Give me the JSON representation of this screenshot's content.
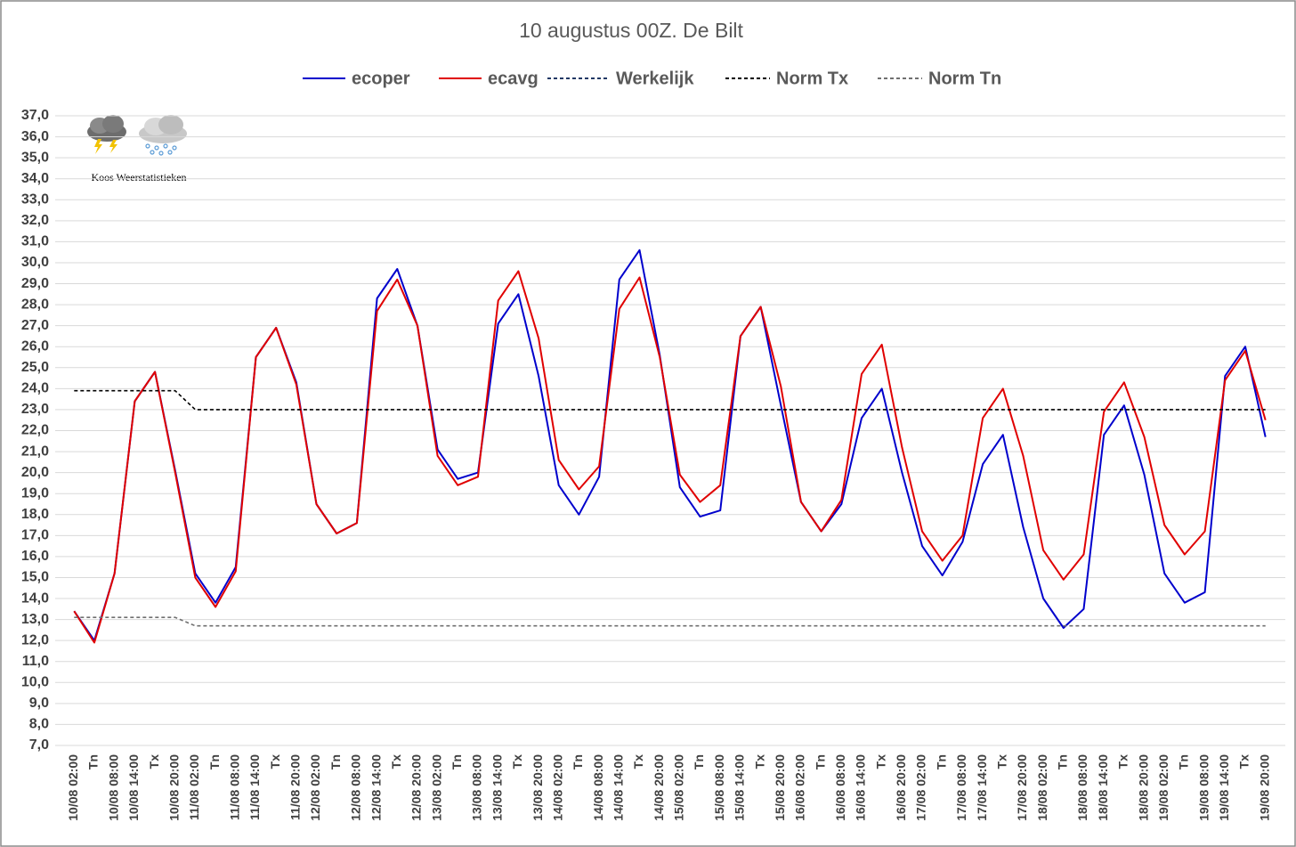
{
  "chart_data": {
    "type": "line",
    "title": "10 augustus 00Z. De Bilt",
    "logo_text": "Koos Weerstatistieken",
    "categories": [
      "10/08 02:00",
      "Tn",
      "10/08 08:00",
      "10/08 14:00",
      "Tx",
      "10/08 20:00",
      "11/08 02:00",
      "Tn",
      "11/08 08:00",
      "11/08 14:00",
      "Tx",
      "11/08 20:00",
      "12/08 02:00",
      "Tn",
      "12/08 08:00",
      "12/08 14:00",
      "Tx",
      "12/08 20:00",
      "13/08 02:00",
      "Tn",
      "13/08 08:00",
      "13/08 14:00",
      "Tx",
      "13/08 20:00",
      "14/08 02:00",
      "Tn",
      "14/08 08:00",
      "14/08 14:00",
      "Tx",
      "14/08 20:00",
      "15/08 02:00",
      "Tn",
      "15/08 08:00",
      "15/08 14:00",
      "Tx",
      "15/08 20:00",
      "16/08 02:00",
      "Tn",
      "16/08 08:00",
      "16/08 14:00",
      "Tx",
      "16/08 20:00",
      "17/08 02:00",
      "Tn",
      "17/08 08:00",
      "17/08 14:00",
      "Tx",
      "17/08 20:00",
      "18/08 02:00",
      "Tn",
      "18/08 08:00",
      "18/08 14:00",
      "Tx",
      "18/08 20:00",
      "19/08 02:00",
      "Tn",
      "19/08 08:00",
      "19/08 14:00",
      "Tx",
      "19/08 20:00"
    ],
    "series": [
      {
        "name": "ecoper",
        "color": "#0000cc",
        "dashed": false,
        "values": [
          13.4,
          12.0,
          15.2,
          23.4,
          24.8,
          20.1,
          15.2,
          13.8,
          15.5,
          25.5,
          26.9,
          24.3,
          18.5,
          17.1,
          17.6,
          28.3,
          29.7,
          27.0,
          21.1,
          19.7,
          20.0,
          27.1,
          28.5,
          24.6,
          19.4,
          18.0,
          19.8,
          29.2,
          30.6,
          25.6,
          19.3,
          17.9,
          18.2,
          26.5,
          27.9,
          23.2,
          18.6,
          17.2,
          18.5,
          22.6,
          24.0,
          20.0,
          16.5,
          15.1,
          16.7,
          20.4,
          21.8,
          17.4,
          14.0,
          12.6,
          13.5,
          21.8,
          23.2,
          19.9,
          15.2,
          13.8,
          14.3,
          24.6,
          26.0,
          21.7
        ]
      },
      {
        "name": "ecavg",
        "color": "#e00000",
        "dashed": false,
        "values": [
          13.4,
          11.9,
          15.2,
          23.4,
          24.8,
          20.0,
          15.0,
          13.6,
          15.3,
          25.5,
          26.9,
          24.2,
          18.5,
          17.1,
          17.6,
          27.7,
          29.2,
          27.0,
          20.8,
          19.4,
          19.8,
          28.2,
          29.6,
          26.4,
          20.6,
          19.2,
          20.3,
          27.8,
          29.3,
          25.5,
          19.9,
          18.6,
          19.4,
          26.5,
          27.9,
          24.1,
          18.6,
          17.2,
          18.7,
          24.7,
          26.1,
          21.2,
          17.2,
          15.8,
          17.0,
          22.6,
          24.0,
          20.8,
          16.3,
          14.9,
          16.1,
          22.9,
          24.3,
          21.7,
          17.5,
          16.1,
          17.2,
          24.4,
          25.8,
          22.5
        ]
      },
      {
        "name": "Werkelijk",
        "color": "#203864",
        "dashed": true,
        "values": [
          null,
          null,
          null,
          null,
          null,
          null,
          null,
          null,
          null,
          null,
          null,
          null,
          null,
          null,
          null,
          null,
          null,
          null,
          null,
          null,
          null,
          null,
          null,
          null,
          null,
          null,
          null,
          null,
          null,
          null,
          null,
          null,
          null,
          null,
          null,
          null,
          null,
          null,
          null,
          null,
          null,
          null,
          null,
          null,
          null,
          null,
          null,
          null,
          null,
          null,
          null,
          null,
          null,
          null,
          null,
          null,
          null,
          null,
          null,
          null
        ]
      },
      {
        "name": "Norm Tx",
        "color": "#000000",
        "dashed": true,
        "values": [
          23.9,
          23.9,
          23.9,
          23.9,
          23.9,
          23.9,
          23.0,
          23.0,
          23.0,
          23.0,
          23.0,
          23.0,
          23.0,
          23.0,
          23.0,
          23.0,
          23.0,
          23.0,
          23.0,
          23.0,
          23.0,
          23.0,
          23.0,
          23.0,
          23.0,
          23.0,
          23.0,
          23.0,
          23.0,
          23.0,
          23.0,
          23.0,
          23.0,
          23.0,
          23.0,
          23.0,
          23.0,
          23.0,
          23.0,
          23.0,
          23.0,
          23.0,
          23.0,
          23.0,
          23.0,
          23.0,
          23.0,
          23.0,
          23.0,
          23.0,
          23.0,
          23.0,
          23.0,
          23.0,
          23.0,
          23.0,
          23.0,
          23.0,
          23.0,
          23.0
        ]
      },
      {
        "name": "Norm Tn",
        "color": "#707070",
        "dashed": true,
        "values": [
          13.1,
          13.1,
          13.1,
          13.1,
          13.1,
          13.1,
          12.7,
          12.7,
          12.7,
          12.7,
          12.7,
          12.7,
          12.7,
          12.7,
          12.7,
          12.7,
          12.7,
          12.7,
          12.7,
          12.7,
          12.7,
          12.7,
          12.7,
          12.7,
          12.7,
          12.7,
          12.7,
          12.7,
          12.7,
          12.7,
          12.7,
          12.7,
          12.7,
          12.7,
          12.7,
          12.7,
          12.7,
          12.7,
          12.7,
          12.7,
          12.7,
          12.7,
          12.7,
          12.7,
          12.7,
          12.7,
          12.7,
          12.7,
          12.7,
          12.7,
          12.7,
          12.7,
          12.7,
          12.7,
          12.7,
          12.7,
          12.7,
          12.7,
          12.7,
          12.7
        ]
      }
    ],
    "ylim": [
      7,
      37
    ],
    "yticks": [
      {
        "value": 7,
        "label": "7,0"
      },
      {
        "value": 8,
        "label": "8,0"
      },
      {
        "value": 9,
        "label": "9,0"
      },
      {
        "value": 10,
        "label": "10,0"
      },
      {
        "value": 11,
        "label": "11,0"
      },
      {
        "value": 12,
        "label": "12,0"
      },
      {
        "value": 13,
        "label": "13,0"
      },
      {
        "value": 14,
        "label": "14,0"
      },
      {
        "value": 15,
        "label": "15,0"
      },
      {
        "value": 16,
        "label": "16,0"
      },
      {
        "value": 17,
        "label": "17,0"
      },
      {
        "value": 18,
        "label": "18,0"
      },
      {
        "value": 19,
        "label": "19,0"
      },
      {
        "value": 20,
        "label": "20,0"
      },
      {
        "value": 21,
        "label": "21,0"
      },
      {
        "value": 22,
        "label": "22,0"
      },
      {
        "value": 23,
        "label": "23,0"
      },
      {
        "value": 24,
        "label": "24,0"
      },
      {
        "value": 25,
        "label": "25,0"
      },
      {
        "value": 26,
        "label": "26,0"
      },
      {
        "value": 27,
        "label": "27,0"
      },
      {
        "value": 28,
        "label": "28,0"
      },
      {
        "value": 29,
        "label": "29,0"
      },
      {
        "value": 30,
        "label": "30,0"
      },
      {
        "value": 31,
        "label": "31,0"
      },
      {
        "value": 32,
        "label": "32,0"
      },
      {
        "value": 33,
        "label": "33,0"
      },
      {
        "value": 34,
        "label": "34,0"
      },
      {
        "value": 35,
        "label": "35,0"
      },
      {
        "value": 36,
        "label": "36,0"
      },
      {
        "value": 37,
        "label": "37,0"
      }
    ],
    "grid": true,
    "legend": "top"
  }
}
